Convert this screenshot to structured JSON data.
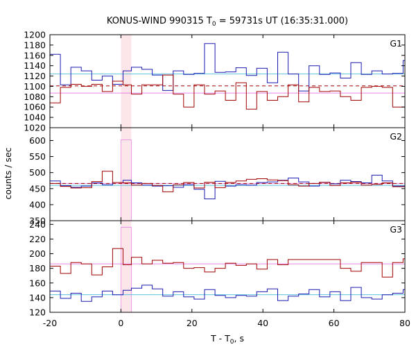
{
  "chart_data": {
    "type": "line",
    "title": {
      "pre": "KONUS-WIND 990315 T",
      "sub": "0",
      "post": " = 59731s UT (16:35:31.000)"
    },
    "xlabel": {
      "pre": "T - T",
      "sub": "0",
      "post": ", s"
    },
    "ylabel": "counts / sec",
    "xlim": [
      -20,
      80
    ],
    "xticks": [
      "-20",
      "0",
      "20",
      "40",
      "60",
      "80"
    ],
    "highlight_interval": [
      0,
      2.944
    ],
    "colors": {
      "dark_red": "#a00000",
      "blue": "#1a1ab0",
      "cyan": "#5bc0de",
      "pink": "#e060e0",
      "highlight_fill": "#fde6ea",
      "highlight_line": "#f0a0c0"
    },
    "panels": [
      {
        "name": "G1",
        "ylim": [
          1020,
          1200
        ],
        "yticks": [
          "1020",
          "1040",
          "1060",
          "1080",
          "1100",
          "1120",
          "1140",
          "1160",
          "1180",
          "1200"
        ],
        "blue_level": 1124,
        "pink_level": 1087,
        "red_dashed_level": 1101,
        "series": [
          {
            "name": "",
            "color": "blue",
            "x": [
              -20,
              -17.06,
              -14.11,
              -11.17,
              -8.22,
              -5.28,
              -2.34,
              0.61,
              2.94,
              5.89,
              8.83,
              11.78,
              14.72,
              17.66,
              20.61,
              23.55,
              26.5,
              29.44,
              32.38,
              35.33,
              38.27,
              41.22,
              44.16,
              47.1,
              50.05,
              52.99,
              55.94,
              58.88,
              61.82,
              64.77,
              67.71,
              70.66,
              73.6,
              76.54,
              79.5
            ],
            "values": [
              1162,
              1103,
              1137,
              1130,
              1112,
              1120,
              1104,
              1130,
              1137,
              1133,
              1122,
              1092,
              1130,
              1123,
              1125,
              1183,
              1127,
              1128,
              1136,
              1121,
              1135,
              1107,
              1166,
              1124,
              1091,
              1140,
              1123,
              1126,
              1116,
              1146,
              1123,
              1130,
              1124,
              1125,
              1150
            ]
          },
          {
            "name": "",
            "color": "dark_red",
            "x": [
              -20,
              -17.06,
              -14.11,
              -11.17,
              -8.22,
              -5.28,
              -2.34,
              0.61,
              2.94,
              5.89,
              8.83,
              11.78,
              14.72,
              17.66,
              20.61,
              23.55,
              26.5,
              29.44,
              32.38,
              35.33,
              38.27,
              41.22,
              44.16,
              47.1,
              50.05,
              52.99,
              55.94,
              58.88,
              61.82,
              64.77,
              67.71,
              70.66,
              73.6,
              76.54,
              79.5
            ],
            "values": [
              1068,
              1098,
              1104,
              1100,
              1104,
              1090,
              1110,
              1103,
              1085,
              1103,
              1103,
              1122,
              1085,
              1060,
              1103,
              1085,
              1091,
              1073,
              1107,
              1056,
              1090,
              1073,
              1080,
              1103,
              1070,
              1098,
              1090,
              1091,
              1080,
              1073,
              1098,
              1100,
              1098,
              1060,
              1060
            ]
          }
        ],
        "spike": null
      },
      {
        "name": "G2",
        "ylim": [
          350,
          640
        ],
        "yticks": [
          "350",
          "400",
          "450",
          "500",
          "550",
          "600"
        ],
        "blue_level": 460,
        "pink_level": 466,
        "red_dashed_level": 466,
        "series": [
          {
            "name": "",
            "color": "blue",
            "x": [
              -20,
              -17.06,
              -14.11,
              -11.17,
              -8.22,
              -5.28,
              -2.34,
              0.61,
              2.94,
              5.89,
              8.83,
              11.78,
              14.72,
              17.66,
              20.61,
              23.55,
              26.5,
              29.44,
              32.38,
              35.33,
              38.27,
              41.22,
              44.16,
              47.1,
              50.05,
              52.99,
              55.94,
              58.88,
              61.82,
              64.77,
              67.71,
              70.66,
              73.6,
              76.54,
              79.5
            ],
            "values": [
              474,
              459,
              454,
              458,
              468,
              462,
              469,
              476,
              468,
              461,
              458,
              459,
              454,
              462,
              448,
              418,
              473,
              458,
              462,
              461,
              469,
              471,
              476,
              483,
              471,
              458,
              470,
              465,
              476,
              472,
              468,
              492,
              474,
              458,
              458
            ]
          },
          {
            "name": "",
            "color": "dark_red",
            "x": [
              -20,
              -17.06,
              -14.11,
              -11.17,
              -8.22,
              -5.28,
              -2.34,
              0.61,
              2.94,
              5.89,
              8.83,
              11.78,
              14.72,
              17.66,
              20.61,
              23.55,
              26.5,
              29.44,
              32.38,
              35.33,
              38.27,
              41.22,
              44.16,
              47.1,
              50.05,
              52.99,
              55.94,
              58.88,
              61.82,
              64.77,
              67.71,
              70.66,
              73.6,
              76.54,
              79.5
            ],
            "values": [
              466,
              457,
              452,
              453,
              472,
              504,
              469,
              468,
              461,
              466,
              460,
              440,
              462,
              469,
              452,
              470,
              453,
              469,
              474,
              479,
              481,
              477,
              475,
              462,
              458,
              466,
              470,
              460,
              468,
              470,
              461,
              463,
              468,
              456,
              456
            ]
          }
        ],
        "spike": {
          "color": "pink",
          "value": 602
        }
      },
      {
        "name": "G3",
        "ylim": [
          120,
          245
        ],
        "yticks": [
          "120",
          "140",
          "160",
          "180",
          "200",
          "220",
          "240"
        ],
        "blue_level": 144,
        "pink_level": 186,
        "red_dashed_level": null,
        "series": [
          {
            "name": "",
            "color": "blue",
            "x": [
              -20,
              -17.06,
              -14.11,
              -11.17,
              -8.22,
              -5.28,
              -2.34,
              0.61,
              2.94,
              5.89,
              8.83,
              11.78,
              14.72,
              17.66,
              20.61,
              23.55,
              26.5,
              29.44,
              32.38,
              35.33,
              38.27,
              41.22,
              44.16,
              47.1,
              50.05,
              52.99,
              55.94,
              58.88,
              61.82,
              64.77,
              67.71,
              70.66,
              73.6,
              76.54,
              79.5
            ],
            "values": [
              149,
              139,
              146,
              135,
              141,
              149,
              144,
              150,
              153,
              157,
              152,
              142,
              148,
              141,
              138,
              151,
              143,
              140,
              143,
              142,
              148,
              152,
              136,
              142,
              145,
              151,
              141,
              148,
              136,
              154,
              140,
              138,
              144,
              146,
              151
            ]
          },
          {
            "name": "",
            "color": "dark_red",
            "x": [
              -20,
              -17.06,
              -14.11,
              -11.17,
              -8.22,
              -5.28,
              -2.34,
              0.61,
              2.94,
              5.89,
              8.83,
              11.78,
              14.72,
              17.66,
              20.61,
              23.55,
              26.5,
              29.44,
              32.38,
              35.33,
              38.27,
              41.22,
              44.16,
              47.1,
              50.05,
              52.99,
              55.94,
              58.88,
              61.82,
              64.77,
              67.71,
              70.66,
              73.6,
              76.54,
              79.5
            ],
            "values": [
              183,
              173,
              188,
              186,
              171,
              182,
              207,
              185,
              195,
              186,
              191,
              187,
              188,
              180,
              181,
              175,
              180,
              187,
              184,
              186,
              179,
              192,
              185,
              192,
              192,
              192,
              192,
              192,
              180,
              176,
              188,
              188,
              168,
              188,
              193
            ]
          }
        ],
        "spike": {
          "color": "pink",
          "value": 236
        }
      }
    ]
  }
}
